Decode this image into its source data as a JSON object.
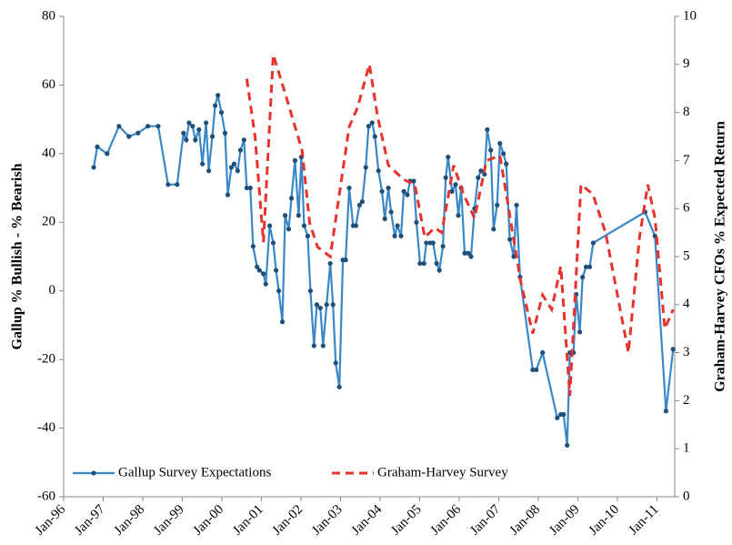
{
  "chart_data": {
    "type": "line",
    "ylabel": "Gallup % Bullish - % Bearish",
    "y2label": "Graham-Harvey CFOs % Expected Return",
    "xlim": [
      1996,
      2011.45
    ],
    "xticks": [
      {
        "value": 1996,
        "label": "Jan-96"
      },
      {
        "value": 1997,
        "label": "Jan-97"
      },
      {
        "value": 1998,
        "label": "Jan-98"
      },
      {
        "value": 1999,
        "label": "Jan-99"
      },
      {
        "value": 2000,
        "label": "Jan-00"
      },
      {
        "value": 2001,
        "label": "Jan-01"
      },
      {
        "value": 2002,
        "label": "Jan-02"
      },
      {
        "value": 2003,
        "label": "Jan-03"
      },
      {
        "value": 2004,
        "label": "Jan-04"
      },
      {
        "value": 2005,
        "label": "Jan-05"
      },
      {
        "value": 2006,
        "label": "Jan-06"
      },
      {
        "value": 2007,
        "label": "Jan-07"
      },
      {
        "value": 2008,
        "label": "Jan-08"
      },
      {
        "value": 2009,
        "label": "Jan-09"
      },
      {
        "value": 2010,
        "label": "Jan-10"
      },
      {
        "value": 2011,
        "label": "Jan-11"
      }
    ],
    "ylim": [
      -60,
      80
    ],
    "yticks": [
      -60,
      -40,
      -20,
      0,
      20,
      40,
      60,
      80
    ],
    "y2lim": [
      0,
      10
    ],
    "y2ticks": [
      0,
      1,
      2,
      3,
      4,
      5,
      6,
      7,
      8,
      9,
      10
    ],
    "legend": "bottom-left",
    "series": [
      {
        "name": "Gallup Survey Expectations",
        "color": "#3a87c8",
        "marker_color": "#1f4e79",
        "x": [
          1996.76,
          1996.85,
          1997.1,
          1997.4,
          1997.65,
          1997.88,
          1998.13,
          1998.39,
          1998.64,
          1998.87,
          1999.03,
          1999.1,
          1999.17,
          1999.26,
          1999.33,
          1999.42,
          1999.51,
          1999.6,
          1999.67,
          1999.76,
          1999.83,
          1999.9,
          1999.99,
          2000.08,
          2000.15,
          2000.24,
          2000.31,
          2000.4,
          2000.47,
          2000.56,
          2000.63,
          2000.72,
          2000.79,
          2000.89,
          2000.95,
          2001.05,
          2001.11,
          2001.21,
          2001.3,
          2001.37,
          2001.44,
          2001.53,
          2001.6,
          2001.69,
          2001.76,
          2001.85,
          2001.94,
          2002.01,
          2002.08,
          2002.17,
          2002.24,
          2002.33,
          2002.4,
          2002.49,
          2002.56,
          2002.65,
          2002.74,
          2002.81,
          2002.88,
          2002.97,
          2003.06,
          2003.13,
          2003.22,
          2003.32,
          2003.39,
          2003.48,
          2003.55,
          2003.64,
          2003.71,
          2003.8,
          2003.87,
          2003.96,
          2004.05,
          2004.12,
          2004.21,
          2004.28,
          2004.37,
          2004.44,
          2004.53,
          2004.6,
          2004.69,
          2004.76,
          2004.85,
          2004.92,
          2005.01,
          2005.11,
          2005.17,
          2005.27,
          2005.34,
          2005.43,
          2005.5,
          2005.59,
          2005.66,
          2005.72,
          2005.82,
          2005.91,
          2005.98,
          2006.05,
          2006.14,
          2006.23,
          2006.3,
          2006.39,
          2006.48,
          2006.55,
          2006.64,
          2006.71,
          2006.8,
          2006.87,
          2006.96,
          2007.03,
          2007.12,
          2007.19,
          2007.28,
          2007.38,
          2007.45,
          2007.54,
          2007.86,
          2007.95,
          2008.11,
          2008.48,
          2008.57,
          2008.64,
          2008.73,
          2008.8,
          2008.89,
          2008.96,
          2009.05,
          2009.12,
          2009.21,
          2009.3,
          2009.39,
          2010.7,
          2010.95,
          2011.23,
          2011.41
        ],
        "values": [
          36,
          42,
          40,
          48,
          45,
          46,
          48,
          48,
          31,
          31,
          46,
          44,
          49,
          48,
          44,
          47,
          37,
          49,
          35,
          45,
          54,
          57,
          52,
          46,
          28,
          36,
          37,
          35,
          41,
          44,
          30,
          30,
          13,
          7,
          6,
          5,
          2,
          19,
          14,
          6,
          0,
          -9,
          22,
          18,
          27,
          38,
          22,
          39,
          19,
          16,
          0,
          -16,
          -4,
          -5,
          -16,
          -4,
          8,
          -4,
          -21,
          -28,
          9,
          9,
          30,
          19,
          19,
          25,
          26,
          36,
          48,
          49,
          45,
          35,
          29,
          21,
          30,
          23,
          16,
          19,
          16,
          29,
          28,
          32,
          32,
          20,
          8,
          8,
          14,
          14,
          14,
          8,
          6,
          13,
          33,
          39,
          29,
          31,
          22,
          30,
          11,
          11,
          10,
          24,
          33,
          35,
          34,
          47,
          41,
          18,
          25,
          43,
          40,
          37,
          15,
          10,
          25,
          4,
          -23,
          -23,
          -18,
          -37,
          -36,
          -36,
          -45,
          -18,
          -18,
          -1,
          -12,
          4,
          7,
          7,
          14,
          23,
          16,
          -35,
          -17
        ]
      },
      {
        "name": "Graham-Harvey Survey",
        "color": "#e8322e",
        "axis": "y2",
        "dashed": true,
        "x": [
          2000.63,
          2000.84,
          2001.05,
          2001.3,
          2001.6,
          2002.03,
          2002.22,
          2002.42,
          2002.74,
          2003.22,
          2003.43,
          2003.73,
          2003.94,
          2004.21,
          2004.6,
          2004.88,
          2005.13,
          2005.38,
          2005.56,
          2005.86,
          2006.11,
          2006.39,
          2006.69,
          2007.03,
          2007.55,
          2007.86,
          2008.11,
          2008.34,
          2008.57,
          2008.8,
          2009.08,
          2009.38,
          2009.7,
          2010.28,
          2010.56,
          2010.77,
          2010.95,
          2011.2,
          2011.41
        ],
        "values": [
          8.7,
          7.5,
          5.3,
          9.2,
          8.4,
          7.2,
          5.7,
          5.2,
          5.0,
          7.7,
          8.1,
          9.0,
          7.9,
          6.9,
          6.6,
          6.5,
          5.4,
          5.6,
          5.5,
          6.9,
          6.3,
          5.8,
          7.0,
          7.1,
          4.5,
          3.4,
          4.2,
          3.9,
          4.8,
          2.1,
          6.5,
          6.3,
          5.5,
          3.0,
          5.4,
          6.5,
          5.8,
          3.5,
          3.9
        ]
      }
    ]
  }
}
